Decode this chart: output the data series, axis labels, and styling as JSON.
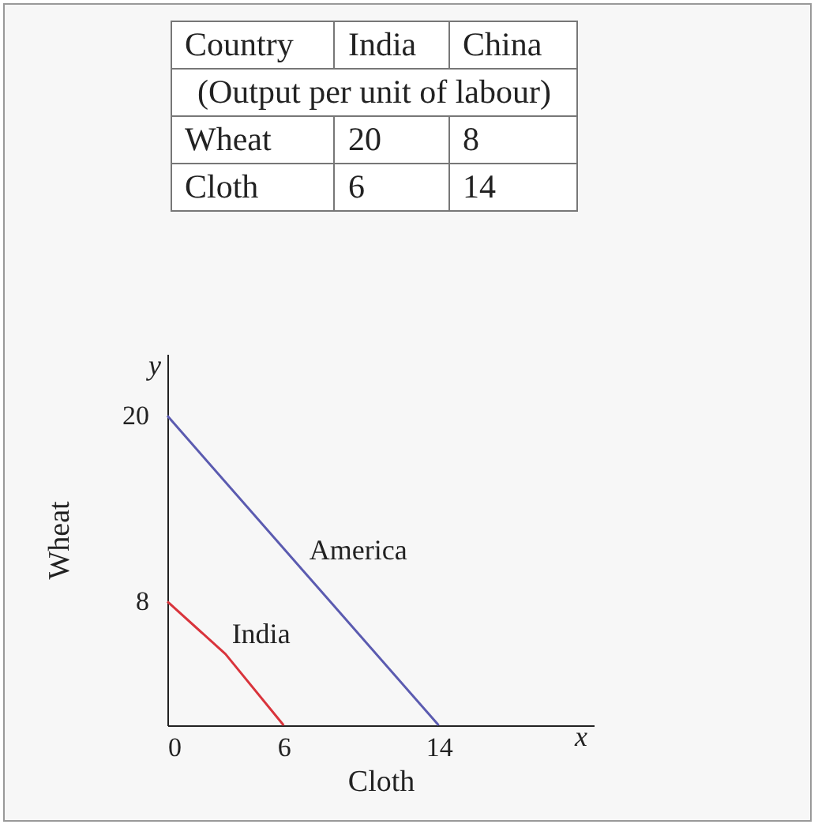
{
  "chart_data": [
    {
      "type": "heatmap",
      "data_labels": true,
      "ylabel": "Country",
      "subtitle": "(Output per unit of labour)",
      "categories": [
        "India",
        "China"
      ],
      "y_categories": [
        "Wheat",
        "Cloth"
      ],
      "cells": [
        [
          20,
          8
        ],
        [
          6,
          14
        ]
      ]
    },
    {
      "type": "line",
      "xlabel": "Cloth",
      "ylabel": "Wheat",
      "xlim": [
        0,
        22
      ],
      "ylim": [
        0,
        24
      ],
      "xticks": [
        0,
        6,
        14
      ],
      "yticks": [
        8,
        20
      ],
      "grid": false,
      "legend": false,
      "annotations": [
        "y",
        "x"
      ],
      "series": [
        {
          "name": "America",
          "color": "#5b5bb0",
          "x": [
            0,
            7,
            14
          ],
          "values": [
            20,
            10,
            0
          ]
        },
        {
          "name": "India",
          "color": "#d9343c",
          "x": [
            0,
            3,
            6
          ],
          "values": [
            8,
            4.6,
            0
          ]
        }
      ]
    }
  ]
}
